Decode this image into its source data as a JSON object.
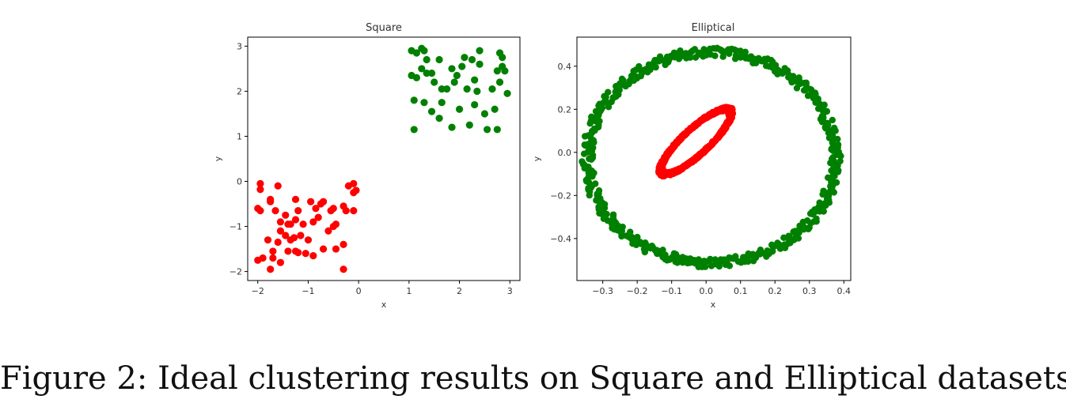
{
  "caption": "Figure 2: Ideal clustering results on Square and Elliptical datasets.",
  "colors": {
    "cluster_a": "#ff0000",
    "cluster_b": "#008000"
  },
  "chart_data": [
    {
      "type": "scatter",
      "title": "Square",
      "xlabel": "x",
      "ylabel": "y",
      "xlim": [
        -2.2,
        3.2
      ],
      "ylim": [
        -2.2,
        3.2
      ],
      "xticks": [
        -2,
        -1,
        0,
        1,
        2,
        3
      ],
      "xtick_labels": [
        "−2",
        "−1",
        "0",
        "1",
        "2",
        "3"
      ],
      "yticks": [
        -2,
        -1,
        0,
        1,
        2,
        3
      ],
      "ytick_labels": [
        "−2",
        "−1",
        "0",
        "1",
        "2",
        "3"
      ],
      "grid": false,
      "series": [
        {
          "color": "#ff0000",
          "points": [
            [
              -1.95,
              -0.05
            ],
            [
              -1.95,
              -0.18
            ],
            [
              -2.0,
              -0.6
            ],
            [
              -1.95,
              -0.65
            ],
            [
              -1.75,
              -0.4
            ],
            [
              -1.75,
              -0.45
            ],
            [
              -1.6,
              -0.1
            ],
            [
              -1.65,
              -0.65
            ],
            [
              -1.55,
              -0.9
            ],
            [
              -1.45,
              -0.75
            ],
            [
              -1.4,
              -0.95
            ],
            [
              -1.35,
              -0.95
            ],
            [
              -1.25,
              -0.4
            ],
            [
              -1.25,
              -0.85
            ],
            [
              -1.2,
              -0.65
            ],
            [
              -1.1,
              -0.95
            ],
            [
              -1.55,
              -1.1
            ],
            [
              -1.45,
              -1.2
            ],
            [
              -1.35,
              -1.3
            ],
            [
              -1.28,
              -1.25
            ],
            [
              -1.15,
              -1.2
            ],
            [
              -1.0,
              -1.3
            ],
            [
              -1.8,
              -1.3
            ],
            [
              -1.6,
              -1.35
            ],
            [
              -1.4,
              -1.55
            ],
            [
              -1.25,
              -1.55
            ],
            [
              -1.2,
              -1.58
            ],
            [
              -1.05,
              -1.6
            ],
            [
              -0.9,
              -1.65
            ],
            [
              -1.7,
              -1.55
            ],
            [
              -1.7,
              -1.7
            ],
            [
              -1.9,
              -1.7
            ],
            [
              -2.0,
              -1.75
            ],
            [
              -1.55,
              -1.8
            ],
            [
              -1.75,
              -1.95
            ],
            [
              -0.95,
              -0.45
            ],
            [
              -0.85,
              -0.6
            ],
            [
              -0.75,
              -0.5
            ],
            [
              -0.7,
              -0.45
            ],
            [
              -0.55,
              -0.65
            ],
            [
              -0.5,
              -0.6
            ],
            [
              -0.45,
              -0.95
            ],
            [
              -0.5,
              -1.0
            ],
            [
              -0.6,
              -1.1
            ],
            [
              -0.9,
              -0.9
            ],
            [
              -0.8,
              -0.8
            ],
            [
              -0.45,
              -1.5
            ],
            [
              -0.7,
              -1.5
            ],
            [
              -0.3,
              -0.55
            ],
            [
              -0.25,
              -0.65
            ],
            [
              -0.1,
              -0.65
            ],
            [
              -0.2,
              -0.1
            ],
            [
              -0.1,
              -0.05
            ],
            [
              -0.05,
              -0.2
            ],
            [
              -0.1,
              -0.25
            ],
            [
              -0.3,
              -1.4
            ],
            [
              -0.3,
              -1.95
            ]
          ]
        },
        {
          "color": "#008000",
          "points": [
            [
              1.05,
              2.9
            ],
            [
              1.15,
              2.85
            ],
            [
              1.25,
              2.95
            ],
            [
              1.3,
              2.9
            ],
            [
              1.35,
              2.7
            ],
            [
              1.6,
              2.7
            ],
            [
              1.85,
              2.5
            ],
            [
              2.05,
              2.55
            ],
            [
              2.1,
              2.75
            ],
            [
              2.25,
              2.7
            ],
            [
              2.4,
              2.9
            ],
            [
              2.4,
              2.6
            ],
            [
              2.8,
              2.85
            ],
            [
              2.85,
              2.75
            ],
            [
              2.85,
              2.55
            ],
            [
              2.9,
              2.45
            ],
            [
              1.05,
              2.35
            ],
            [
              1.15,
              2.3
            ],
            [
              1.25,
              2.5
            ],
            [
              1.35,
              2.4
            ],
            [
              1.45,
              2.4
            ],
            [
              1.5,
              2.2
            ],
            [
              1.65,
              2.05
            ],
            [
              1.75,
              2.05
            ],
            [
              1.95,
              2.35
            ],
            [
              1.9,
              2.2
            ],
            [
              2.3,
              2.25
            ],
            [
              2.15,
              2.05
            ],
            [
              2.35,
              2.0
            ],
            [
              2.75,
              2.45
            ],
            [
              2.8,
              2.2
            ],
            [
              2.95,
              1.95
            ],
            [
              2.65,
              2.05
            ],
            [
              1.1,
              1.8
            ],
            [
              1.3,
              1.75
            ],
            [
              1.45,
              1.55
            ],
            [
              1.65,
              1.75
            ],
            [
              2.0,
              1.6
            ],
            [
              2.3,
              1.7
            ],
            [
              2.5,
              1.5
            ],
            [
              2.7,
              1.6
            ],
            [
              1.6,
              1.4
            ],
            [
              1.85,
              1.2
            ],
            [
              2.2,
              1.25
            ],
            [
              2.55,
              1.15
            ],
            [
              2.75,
              1.15
            ],
            [
              1.1,
              1.15
            ]
          ]
        }
      ]
    },
    {
      "type": "scatter",
      "title": "Elliptical",
      "xlabel": "x",
      "ylabel": "y",
      "xlim": [
        -0.375,
        0.42
      ],
      "ylim": [
        -0.595,
        0.535
      ],
      "xticks": [
        -0.3,
        -0.2,
        -0.1,
        0.0,
        0.1,
        0.2,
        0.3,
        0.4
      ],
      "xtick_labels": [
        "−0.3",
        "−0.2",
        "−0.1",
        "0.0",
        "0.1",
        "0.2",
        "0.3",
        "0.4"
      ],
      "yticks": [
        -0.4,
        -0.2,
        0.0,
        0.2,
        0.4
      ],
      "ytick_labels": [
        "−0.4",
        "−0.2",
        "0.0",
        "0.2",
        "0.4"
      ],
      "grid": false,
      "series": [
        {
          "color": "#008000",
          "shape": "ring",
          "center": [
            0.015,
            -0.025
          ],
          "radii": [
            0.36,
            0.49
          ],
          "points_count": 500
        },
        {
          "color": "#ff0000",
          "shape": "tilted-ellipse",
          "center": [
            -0.03,
            0.05
          ],
          "axis_end": [
            0.065,
            0.2
          ],
          "minor_radius": 0.045,
          "points_count": 500
        }
      ]
    }
  ]
}
